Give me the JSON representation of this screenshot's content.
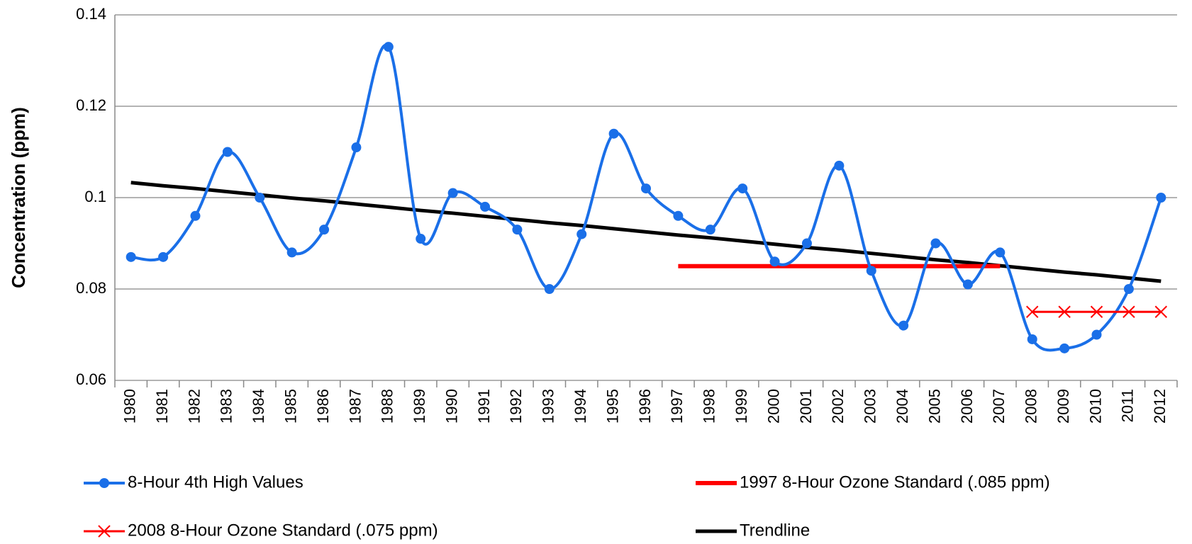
{
  "chart_data": {
    "type": "line",
    "y_label": "Concentration (ppm)",
    "smooth": true,
    "grid": true,
    "categories": [
      "1980",
      "1981",
      "1982",
      "1983",
      "1984",
      "1985",
      "1986",
      "1987",
      "1988",
      "1989",
      "1990",
      "1991",
      "1992",
      "1993",
      "1994",
      "1995",
      "1996",
      "1997",
      "1998",
      "1999",
      "2000",
      "2001",
      "2002",
      "2003",
      "2004",
      "2005",
      "2006",
      "2007",
      "2008",
      "2009",
      "2010",
      "2011",
      "2012"
    ],
    "ylim": [
      0.06,
      0.14
    ],
    "yticks": [
      0.06,
      0.08,
      0.1,
      0.12,
      0.14
    ],
    "series": [
      {
        "name": "8-Hour 4th High Values",
        "color": "#1a6fe8",
        "marker": "circle",
        "smooth": true,
        "width": 4,
        "values": [
          0.087,
          0.087,
          0.096,
          0.11,
          0.1,
          0.088,
          0.093,
          0.111,
          0.133,
          0.091,
          0.101,
          0.098,
          0.093,
          0.08,
          0.092,
          0.114,
          0.102,
          0.096,
          0.093,
          0.102,
          0.086,
          0.09,
          0.107,
          0.084,
          0.072,
          0.09,
          0.081,
          0.088,
          0.069,
          0.067,
          0.07,
          0.08,
          0.1
        ]
      },
      {
        "name": "1997 8-Hour Ozone Standard (.085 ppm)",
        "color": "#ff0000",
        "marker": "none",
        "smooth": false,
        "width": 6,
        "values": [
          null,
          null,
          null,
          null,
          null,
          null,
          null,
          null,
          null,
          null,
          null,
          null,
          null,
          null,
          null,
          null,
          null,
          0.085,
          0.085,
          0.085,
          0.085,
          0.085,
          0.085,
          0.085,
          0.085,
          0.085,
          0.085,
          0.085,
          null,
          null,
          null,
          null,
          null
        ]
      },
      {
        "name": "2008 8-Hour Ozone Standard (.075 ppm)",
        "color": "#ff0000",
        "marker": "x",
        "smooth": false,
        "width": 3,
        "values": [
          null,
          null,
          null,
          null,
          null,
          null,
          null,
          null,
          null,
          null,
          null,
          null,
          null,
          null,
          null,
          null,
          null,
          null,
          null,
          null,
          null,
          null,
          null,
          null,
          null,
          null,
          null,
          null,
          0.075,
          0.075,
          0.075,
          0.075,
          0.075
        ]
      },
      {
        "name": "Trendline",
        "color": "#000000",
        "marker": "none",
        "smooth": false,
        "width": 5,
        "values": [
          0.1033,
          0.1026,
          0.102,
          0.1013,
          0.1006,
          0.0999,
          0.0993,
          0.0986,
          0.0979,
          0.0972,
          0.0966,
          0.0959,
          0.0952,
          0.0945,
          0.0939,
          0.0932,
          0.0925,
          0.0918,
          0.0912,
          0.0905,
          0.0898,
          0.0891,
          0.0885,
          0.0878,
          0.0871,
          0.0864,
          0.0858,
          0.0851,
          0.0844,
          0.0837,
          0.0831,
          0.0824,
          0.0817
        ]
      }
    ]
  }
}
